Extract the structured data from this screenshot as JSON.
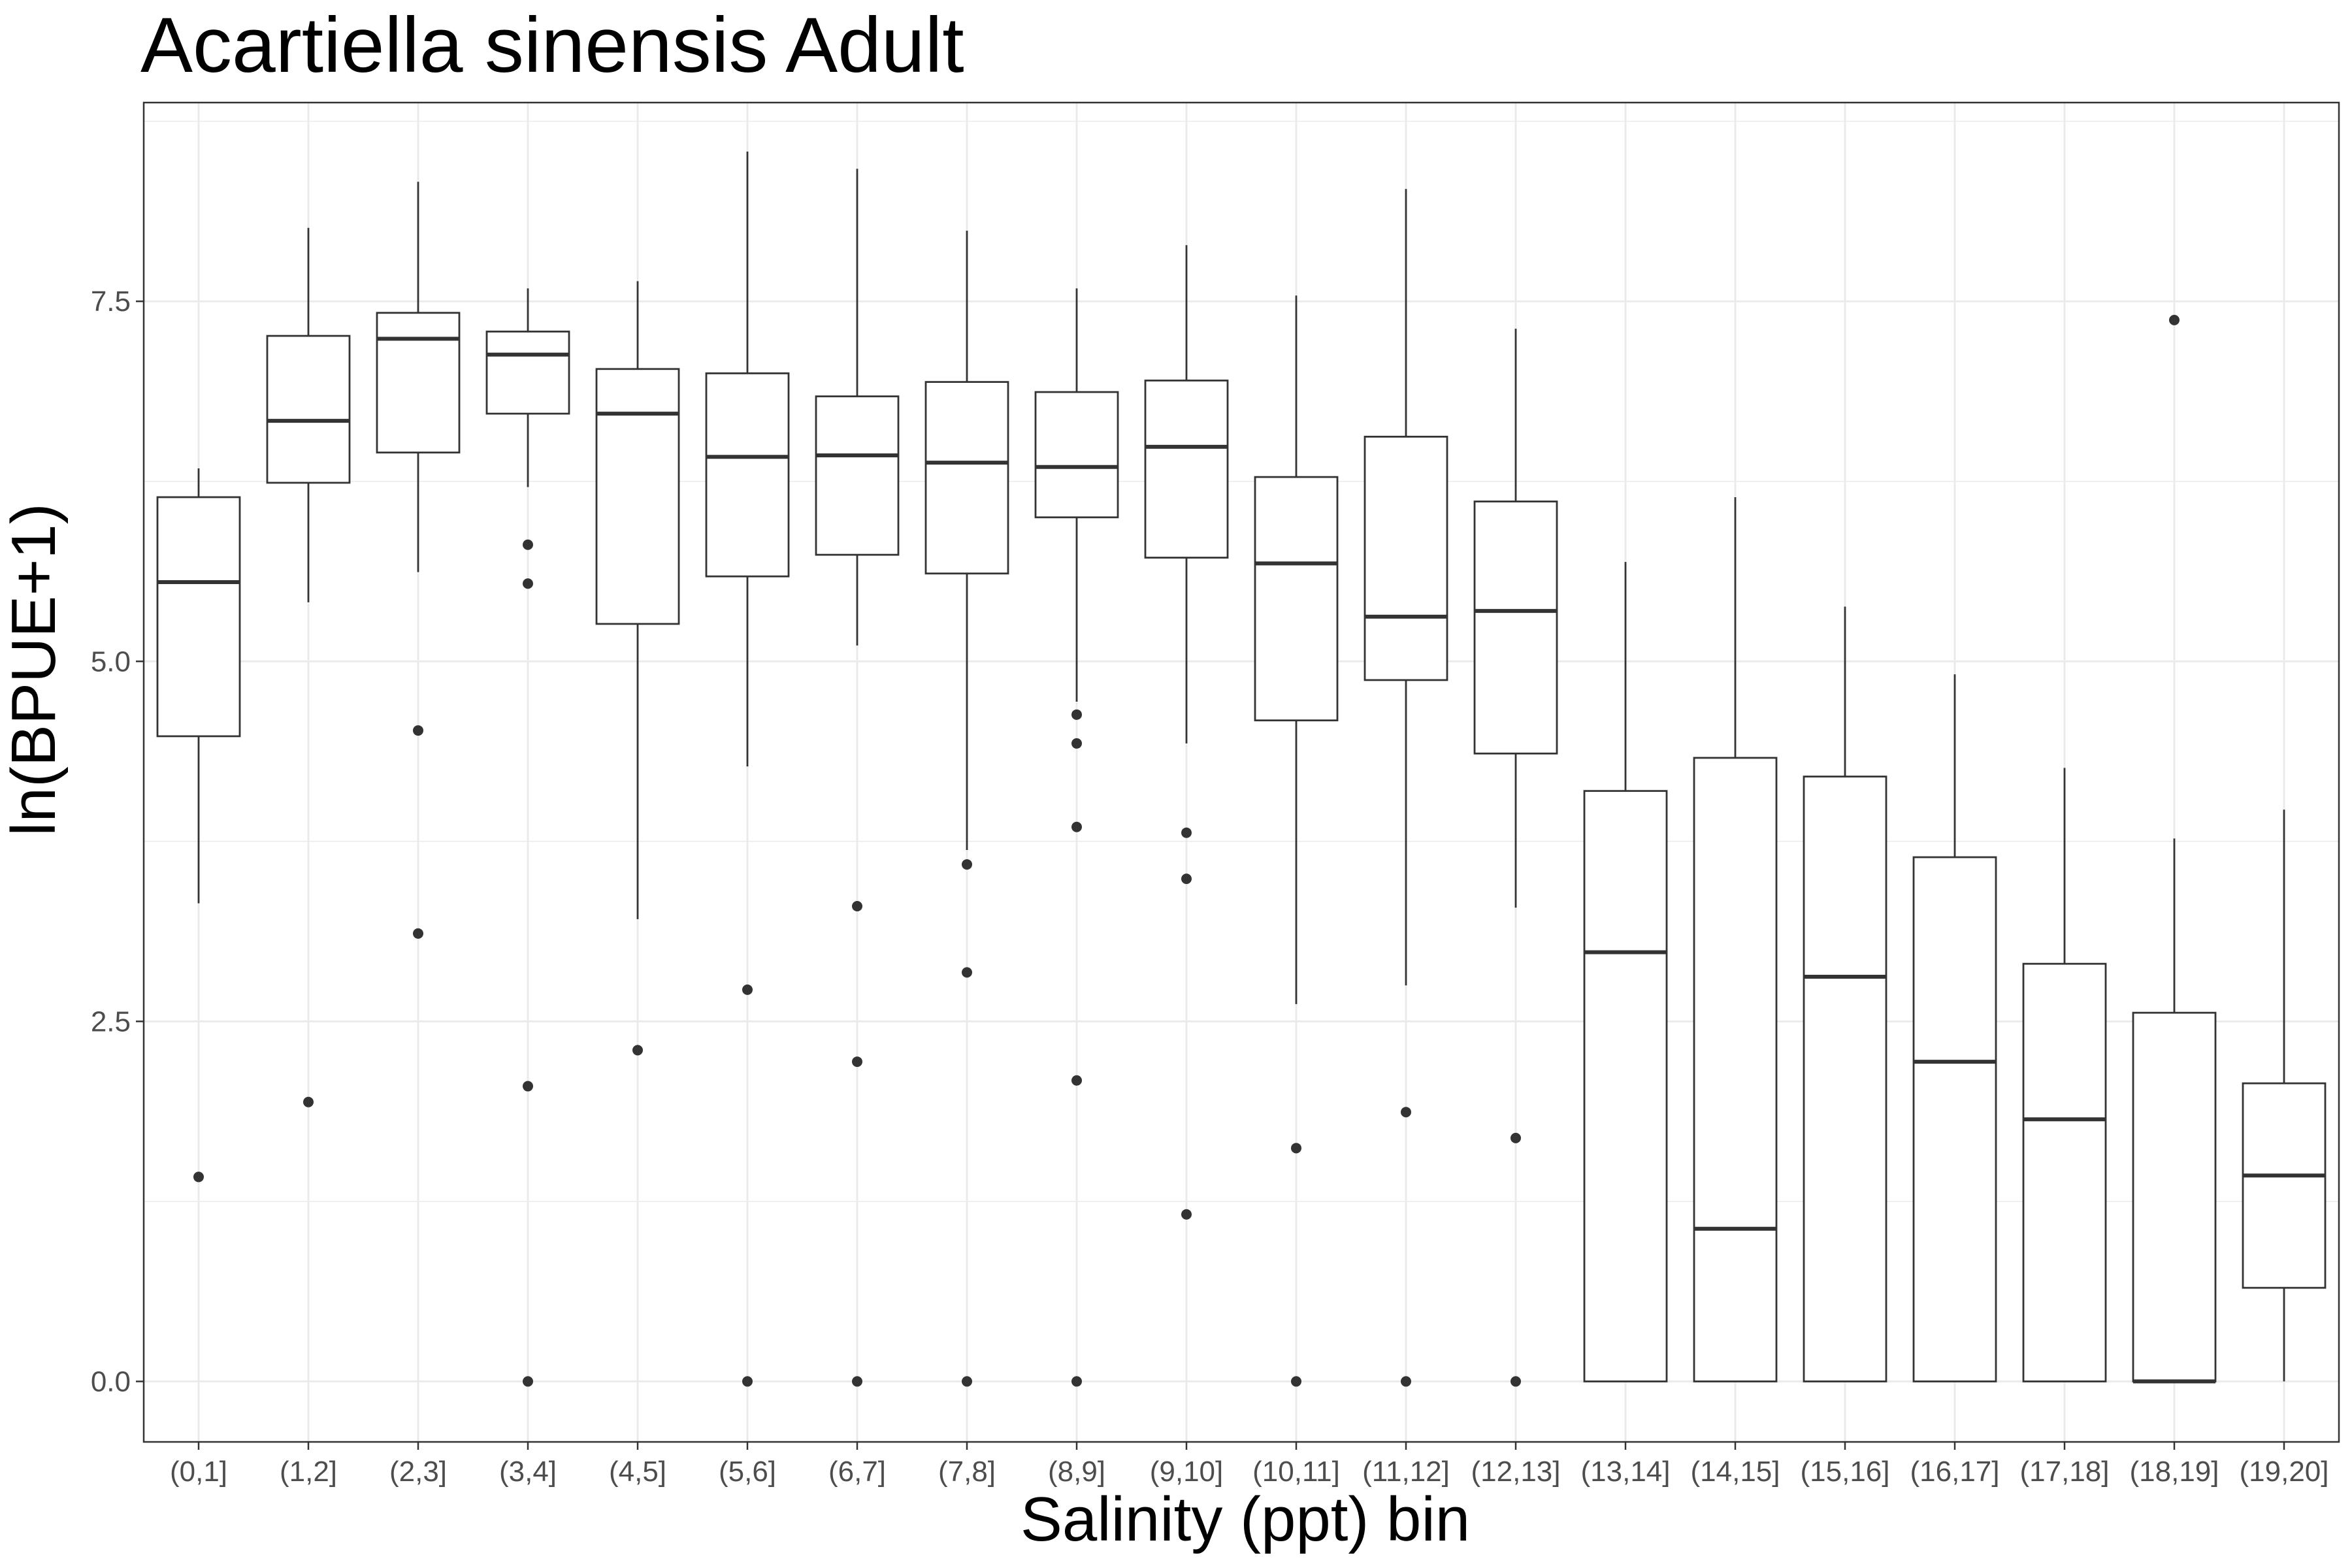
{
  "chart_data": {
    "type": "boxplot",
    "title": "Acartiella sinensis Adult",
    "xlabel": "Salinity (ppt) bin",
    "ylabel": "ln(BPUE+1)",
    "ylim": [
      -0.42,
      8.88
    ],
    "yticks": [
      "0.0",
      "2.5",
      "5.0",
      "7.5"
    ],
    "ytick_values": [
      0,
      2.5,
      5.0,
      7.5
    ],
    "grid": true,
    "legend": "none",
    "colors": {
      "box_line": "#333333",
      "grid": "#ebebeb",
      "panel_border": "#333333",
      "background": "#ffffff"
    },
    "categories": [
      "(0,1]",
      "(1,2]",
      "(2,3]",
      "(3,4]",
      "(4,5]",
      "(5,6]",
      "(6,7]",
      "(7,8]",
      "(8,9]",
      "(9,10]",
      "(10,11]",
      "(11,12]",
      "(12,13]",
      "(13,14]",
      "(14,15]",
      "(15,16]",
      "(16,17]",
      "(17,18]",
      "(18,19]",
      "(19,20]"
    ],
    "boxes": [
      {
        "category": "(0,1]",
        "whisker_low": 3.32,
        "q1": 4.48,
        "median": 5.55,
        "q3": 6.14,
        "whisker_high": 6.34,
        "outliers": [
          1.42
        ]
      },
      {
        "category": "(1,2]",
        "whisker_low": 5.41,
        "q1": 6.24,
        "median": 6.67,
        "q3": 7.26,
        "whisker_high": 8.01,
        "outliers": [
          1.94
        ]
      },
      {
        "category": "(2,3]",
        "whisker_low": 5.62,
        "q1": 6.45,
        "median": 7.24,
        "q3": 7.42,
        "whisker_high": 8.33,
        "outliers": [
          4.52,
          3.11
        ]
      },
      {
        "category": "(3,4]",
        "whisker_low": 6.21,
        "q1": 6.72,
        "median": 7.13,
        "q3": 7.29,
        "whisker_high": 7.59,
        "outliers": [
          5.81,
          5.54,
          2.05,
          0.0
        ]
      },
      {
        "category": "(4,5]",
        "whisker_low": 3.21,
        "q1": 5.26,
        "median": 6.72,
        "q3": 7.03,
        "whisker_high": 7.64,
        "outliers": [
          2.3
        ]
      },
      {
        "category": "(5,6]",
        "whisker_low": 4.27,
        "q1": 5.59,
        "median": 6.42,
        "q3": 7.0,
        "whisker_high": 8.54,
        "outliers": [
          2.72,
          0.0
        ]
      },
      {
        "category": "(6,7]",
        "whisker_low": 5.11,
        "q1": 5.74,
        "median": 6.43,
        "q3": 6.84,
        "whisker_high": 8.42,
        "outliers": [
          3.3,
          2.22,
          0.0
        ]
      },
      {
        "category": "(7,8]",
        "whisker_low": 3.69,
        "q1": 5.61,
        "median": 6.38,
        "q3": 6.94,
        "whisker_high": 7.99,
        "outliers": [
          3.59,
          2.84,
          0.0
        ]
      },
      {
        "category": "(8,9]",
        "whisker_low": 4.72,
        "q1": 6.0,
        "median": 6.35,
        "q3": 6.87,
        "whisker_high": 7.59,
        "outliers": [
          4.63,
          4.43,
          3.85,
          2.09,
          0.0
        ]
      },
      {
        "category": "(9,10]",
        "whisker_low": 4.43,
        "q1": 5.72,
        "median": 6.49,
        "q3": 6.95,
        "whisker_high": 7.89,
        "outliers": [
          3.81,
          3.49,
          1.16
        ]
      },
      {
        "category": "(10,11]",
        "whisker_low": 2.62,
        "q1": 4.59,
        "median": 5.68,
        "q3": 6.28,
        "whisker_high": 7.54,
        "outliers": [
          1.62,
          0.0
        ]
      },
      {
        "category": "(11,12]",
        "whisker_low": 2.75,
        "q1": 4.87,
        "median": 5.31,
        "q3": 6.56,
        "whisker_high": 8.28,
        "outliers": [
          1.87,
          0.0
        ]
      },
      {
        "category": "(12,13]",
        "whisker_low": 3.29,
        "q1": 4.36,
        "median": 5.35,
        "q3": 6.11,
        "whisker_high": 7.31,
        "outliers": [
          1.69,
          0.0
        ]
      },
      {
        "category": "(13,14]",
        "whisker_low": 0.0,
        "q1": 0.0,
        "median": 2.98,
        "q3": 4.1,
        "whisker_high": 5.69,
        "outliers": []
      },
      {
        "category": "(14,15]",
        "whisker_low": 0.0,
        "q1": 0.0,
        "median": 1.06,
        "q3": 4.33,
        "whisker_high": 6.14,
        "outliers": []
      },
      {
        "category": "(15,16]",
        "whisker_low": 0.0,
        "q1": 0.0,
        "median": 2.81,
        "q3": 4.2,
        "whisker_high": 5.38,
        "outliers": []
      },
      {
        "category": "(16,17]",
        "whisker_low": 0.0,
        "q1": 0.0,
        "median": 2.22,
        "q3": 3.64,
        "whisker_high": 4.91,
        "outliers": []
      },
      {
        "category": "(17,18]",
        "whisker_low": 0.0,
        "q1": 0.0,
        "median": 1.82,
        "q3": 2.9,
        "whisker_high": 4.26,
        "outliers": []
      },
      {
        "category": "(18,19]",
        "whisker_low": 0.0,
        "q1": 0.0,
        "median": 0.0,
        "q3": 2.56,
        "whisker_high": 3.77,
        "outliers": [
          7.37
        ]
      },
      {
        "category": "(19,20]",
        "whisker_low": 0.0,
        "q1": 0.65,
        "median": 1.43,
        "q3": 2.07,
        "whisker_high": 3.97,
        "outliers": []
      }
    ]
  }
}
